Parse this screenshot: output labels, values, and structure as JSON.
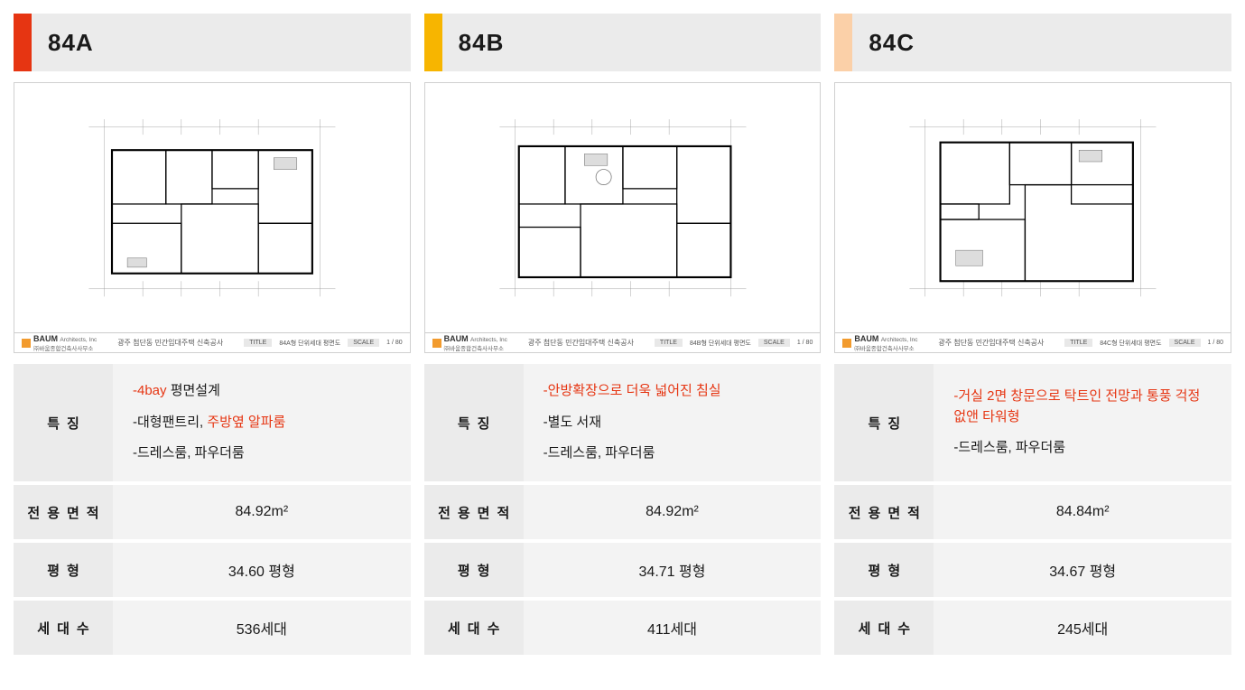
{
  "cards": [
    {
      "id": "84A",
      "accent_color": "#e63512",
      "floorplan_title": "84A형 단위세대 평면도",
      "features_html": [
        {
          "segments": [
            {
              "text": "-4bay",
              "highlight": true
            },
            {
              "text": " 평면설계",
              "highlight": false
            }
          ]
        },
        {
          "segments": [
            {
              "text": "-대형팬트리, ",
              "highlight": false
            },
            {
              "text": "주방옆 알파룸",
              "highlight": true
            }
          ]
        },
        {
          "segments": [
            {
              "text": "-드레스룸, 파우더룸",
              "highlight": false
            }
          ]
        }
      ],
      "area": "84.92m²",
      "pyeong": "34.60 평형",
      "units": "536세대",
      "plan_variant": "a"
    },
    {
      "id": "84B",
      "accent_color": "#f7b500",
      "floorplan_title": "84B형 단위세대 평면도",
      "features_html": [
        {
          "segments": [
            {
              "text": "-안방확장으로 더욱 넓어진 침실",
              "highlight": true
            }
          ]
        },
        {
          "segments": [
            {
              "text": "-별도 서재",
              "highlight": false
            }
          ]
        },
        {
          "segments": [
            {
              "text": "-드레스룸, 파우더룸",
              "highlight": false
            }
          ]
        }
      ],
      "area": "84.92m²",
      "pyeong": "34.71 평형",
      "units": "411세대",
      "plan_variant": "b"
    },
    {
      "id": "84C",
      "accent_color": "#fbd0a8",
      "floorplan_title": "84C형 단위세대 평면도",
      "features_html": [
        {
          "segments": [
            {
              "text": "-거실 2면 창문으로 탁트인 전망과 통풍 걱정 없앤 타워형",
              "highlight": true
            }
          ]
        },
        {
          "segments": [
            {
              "text": "-드레스룸, 파우더룸",
              "highlight": false
            }
          ]
        }
      ],
      "area": "84.84m²",
      "pyeong": "34.67 평형",
      "units": "245세대",
      "plan_variant": "c"
    }
  ],
  "labels": {
    "features": "특징",
    "area": "전용면적",
    "pyeong": "평형",
    "units": "세대수"
  },
  "floorplan_meta": {
    "logo_color": "#f29b2e",
    "logo_name": "BAUM",
    "logo_sub": "Architects, Inc",
    "logo_sub2": "㈜바움종합건축사사무소",
    "project": "광주 첨단동 민간임대주택 신축공사",
    "title_label": "TITLE",
    "scale_label": "SCALE",
    "scale": "1 / 80"
  },
  "styling": {
    "bg_header": "#ebebeb",
    "bg_label": "#ebebeb",
    "bg_value": "#f3f3f3",
    "text_color": "#1a1a1a",
    "highlight_color": "#e63512",
    "border_color": "#d0d0d0"
  }
}
